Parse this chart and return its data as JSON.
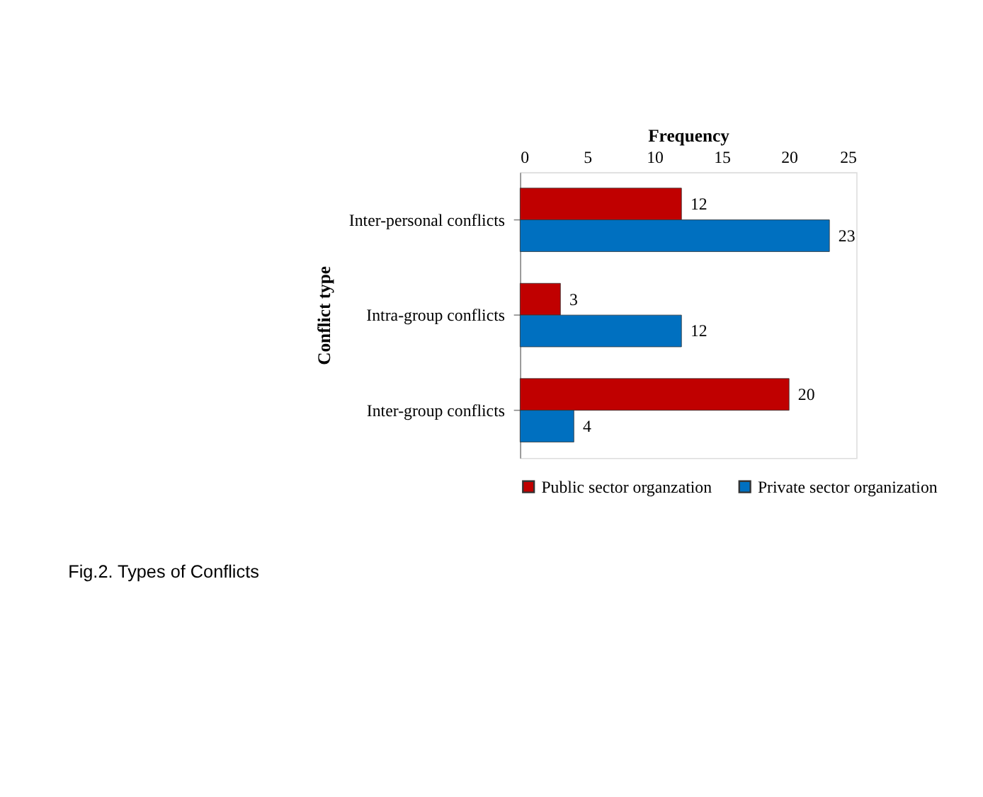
{
  "chart_data": {
    "type": "bar",
    "orientation": "horizontal",
    "xlabel": "Frequency",
    "ylabel": "Conflict type",
    "categories": [
      "Inter-personal conflicts",
      "Intra-group conflicts",
      "Inter-group conflicts"
    ],
    "series": [
      {
        "name": "Public sector organzation",
        "color": "#c00000",
        "values": [
          12,
          3,
          20
        ]
      },
      {
        "name": "Private sector organization",
        "color": "#0070c0",
        "values": [
          23,
          12,
          4
        ]
      }
    ],
    "xlim": [
      0,
      25
    ],
    "xticks": [
      0,
      5,
      10,
      15,
      20,
      25
    ],
    "data_labels": true,
    "legend": "bottom",
    "annotations": [
      "Fig.2. Types of Conflicts"
    ]
  }
}
